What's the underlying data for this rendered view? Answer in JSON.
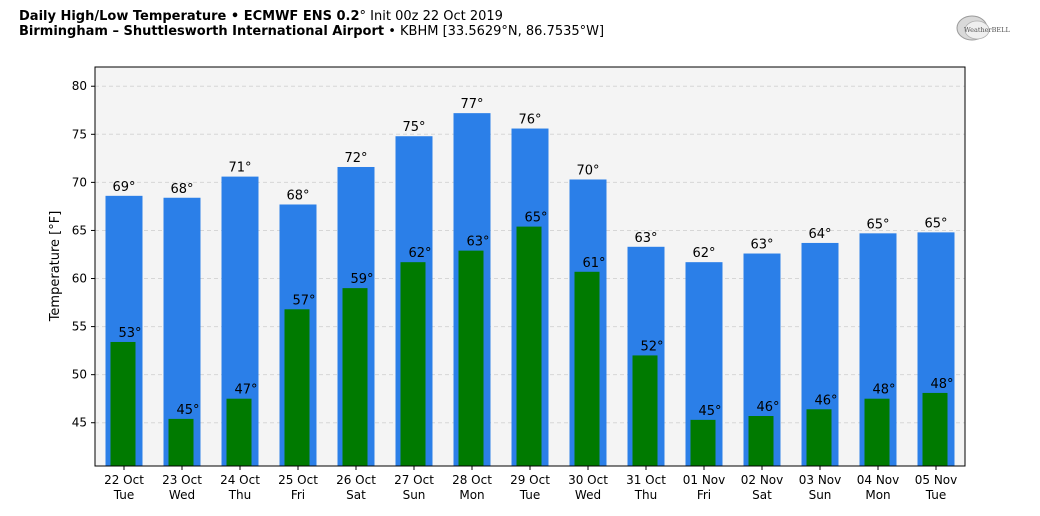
{
  "header": {
    "title_main": "Daily High/Low Temperature • ECMWF ENS 0.2",
    "title_degree": "°",
    "title_init": " Init 00z 22 Oct 2019",
    "location_name": "Birmingham – Shuttlesworth International Airport",
    "location_detail": " • KBHM [33.5629°N, 86.7535°W]"
  },
  "logo": {
    "text": "WeatherBELL",
    "icon": "weatherbell-logo"
  },
  "colors": {
    "high_bar": "#2b7fe8",
    "low_bar": "#007a00",
    "plot_bg": "#f4f4f4",
    "grid": "#d6d6d6"
  },
  "chart_data": {
    "type": "bar",
    "ylabel": "Temperature [°F]",
    "ylim": [
      40.5,
      82
    ],
    "yticks": [
      45,
      50,
      55,
      60,
      65,
      70,
      75,
      80
    ],
    "grid": true,
    "categories": [
      [
        "22 Oct",
        "Tue"
      ],
      [
        "23 Oct",
        "Wed"
      ],
      [
        "24 Oct",
        "Thu"
      ],
      [
        "25 Oct",
        "Fri"
      ],
      [
        "26 Oct",
        "Sat"
      ],
      [
        "27 Oct",
        "Sun"
      ],
      [
        "28 Oct",
        "Mon"
      ],
      [
        "29 Oct",
        "Tue"
      ],
      [
        "30 Oct",
        "Wed"
      ],
      [
        "31 Oct",
        "Thu"
      ],
      [
        "01 Nov",
        "Fri"
      ],
      [
        "02 Nov",
        "Sat"
      ],
      [
        "03 Nov",
        "Sun"
      ],
      [
        "04 Nov",
        "Mon"
      ],
      [
        "05 Nov",
        "Tue"
      ]
    ],
    "series": [
      {
        "key": "high",
        "values": [
          68.6,
          68.4,
          70.6,
          67.7,
          71.6,
          74.8,
          77.2,
          75.6,
          70.3,
          63.3,
          61.7,
          62.6,
          63.7,
          64.7,
          64.8
        ],
        "labels": [
          "69°",
          "68°",
          "71°",
          "68°",
          "72°",
          "75°",
          "77°",
          "76°",
          "70°",
          "63°",
          "62°",
          "63°",
          "64°",
          "65°",
          "65°"
        ]
      },
      {
        "key": "low",
        "values": [
          53.4,
          45.4,
          47.5,
          56.8,
          59.0,
          61.7,
          62.9,
          65.4,
          60.7,
          52.0,
          45.3,
          45.7,
          46.4,
          47.5,
          48.1
        ],
        "labels": [
          "53°",
          "45°",
          "47°",
          "57°",
          "59°",
          "62°",
          "63°",
          "65°",
          "61°",
          "52°",
          "45°",
          "46°",
          "46°",
          "48°",
          "48°"
        ]
      }
    ]
  }
}
